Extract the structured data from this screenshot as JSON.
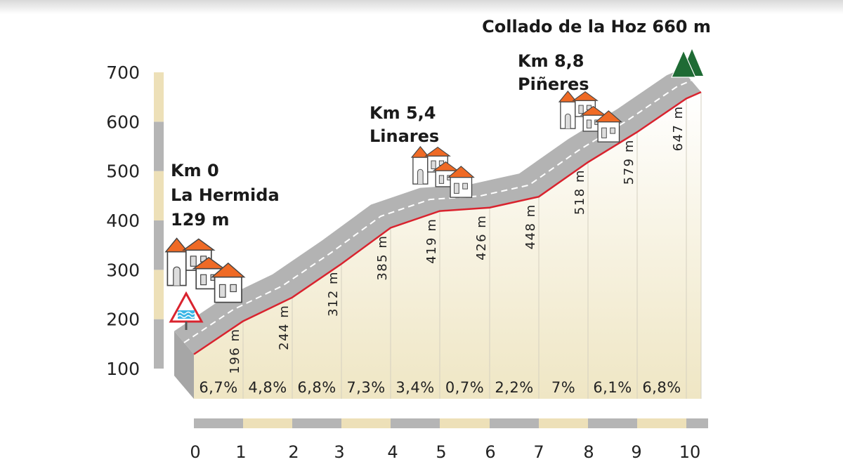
{
  "chart_data": {
    "type": "area",
    "title": "Collado de la Hoz 660 m",
    "xlabel": "",
    "ylabel": "",
    "xlim": [
      0,
      10
    ],
    "ylim": [
      100,
      700
    ],
    "y_ticks": [
      "100",
      "200",
      "300",
      "400",
      "500",
      "600",
      "700"
    ],
    "x_ticks": [
      "0",
      "1",
      "2",
      "3",
      "4",
      "5",
      "6",
      "7",
      "8",
      "9",
      "10"
    ],
    "profile": {
      "x": [
        0,
        1,
        2,
        3,
        4,
        5,
        6,
        7,
        8,
        9,
        10,
        10.3
      ],
      "y": [
        129,
        196,
        244,
        312,
        385,
        419,
        426,
        448,
        518,
        579,
        647,
        660
      ]
    },
    "elevation_labels": [
      {
        "x": 1,
        "label": "196 m"
      },
      {
        "x": 2,
        "label": "244 m"
      },
      {
        "x": 3,
        "label": "312 m"
      },
      {
        "x": 4,
        "label": "385 m"
      },
      {
        "x": 5,
        "label": "419 m"
      },
      {
        "x": 6,
        "label": "426 m"
      },
      {
        "x": 7,
        "label": "448 m"
      },
      {
        "x": 8,
        "label": "518 m"
      },
      {
        "x": 9,
        "label": "579 m"
      },
      {
        "x": 10,
        "label": "647 m"
      }
    ],
    "gradients": [
      "6,7%",
      "4,8%",
      "6,8%",
      "7,3%",
      "3,4%",
      "0,7%",
      "2,2%",
      "7%",
      "6,1%",
      "6,8%"
    ],
    "annotations": {
      "start": {
        "line1": "Km 0",
        "line2": "La Hermida",
        "line3": "129 m"
      },
      "linares": {
        "line1": "Km 5,4",
        "line2": "Linares"
      },
      "pineres": {
        "line1": "Km 8,8",
        "line2": "Piñeres"
      }
    },
    "colors": {
      "road": "#b3b3b3",
      "profile_line": "#d9232e",
      "fill_top": "#ffffff",
      "fill_bottom": "#efe6c4",
      "band_beige": "#ede0b8",
      "band_grey": "#b5b5b5",
      "roof": "#ef6a25",
      "tree": "#1e6b34"
    }
  }
}
